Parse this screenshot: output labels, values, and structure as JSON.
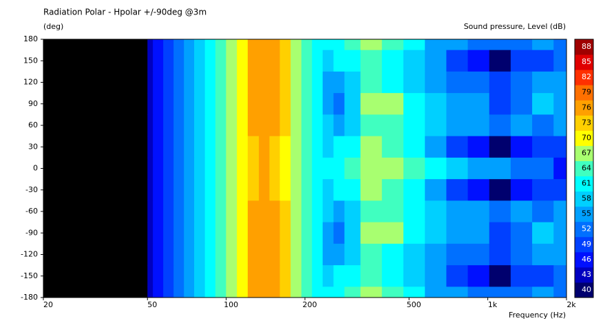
{
  "chart_data": {
    "type": "contour",
    "title": "Radiation Polar - Hpolar +/-90deg @3m",
    "y_label": "(deg)",
    "x_label": "Frequency  (Hz)",
    "colorbar_label": "Sound pressure, Level  (dB)",
    "log_x": true,
    "xlim": [
      20,
      2000
    ],
    "ylim": [
      -180,
      180
    ],
    "xticks": [
      20,
      50,
      100,
      200,
      500,
      {
        "value": 1000,
        "label": "1k"
      },
      {
        "value": 2000,
        "label": "2k"
      }
    ],
    "yticks": [
      180,
      150,
      120,
      90,
      60,
      30,
      0,
      -30,
      -60,
      -90,
      -120,
      -150,
      -180
    ],
    "x": [
      50,
      55,
      60,
      66,
      72,
      79,
      87,
      95,
      105,
      115,
      127,
      140,
      153,
      168,
      185,
      203,
      223,
      245,
      270,
      297,
      358,
      433,
      523,
      632,
      763,
      922,
      1113,
      1345,
      1624,
      1962
    ],
    "y": [
      180,
      150,
      120,
      90,
      60,
      30,
      0,
      -30,
      -60,
      -90,
      -120,
      -150,
      -180
    ],
    "z": [
      [
        44,
        47,
        50,
        53,
        56,
        59,
        62,
        65,
        68,
        71,
        76,
        77,
        76,
        72,
        68,
        65,
        62,
        61,
        62,
        63,
        67,
        64,
        60,
        56,
        54,
        53,
        52,
        51,
        55,
        52
      ],
      [
        44,
        47,
        50,
        53,
        56,
        59,
        62,
        65,
        68,
        71,
        76,
        77,
        76,
        72,
        68,
        65,
        62,
        59,
        60,
        61,
        64,
        62,
        59,
        54,
        48,
        46,
        40,
        48,
        50,
        51
      ],
      [
        44,
        47,
        50,
        53,
        56,
        59,
        62,
        65,
        68,
        71,
        75,
        77,
        75,
        72,
        68,
        65,
        62,
        56,
        55,
        58,
        64,
        62,
        59,
        55,
        52,
        51,
        49,
        52,
        54,
        55
      ],
      [
        44,
        47,
        50,
        53,
        56,
        59,
        62,
        65,
        68,
        71,
        75,
        77,
        75,
        72,
        68,
        65,
        62,
        55,
        53,
        57,
        67,
        66,
        62,
        57,
        55,
        54,
        50,
        53,
        57,
        55
      ],
      [
        44,
        47,
        50,
        53,
        56,
        59,
        62,
        65,
        68,
        71,
        75,
        77,
        75,
        72,
        68,
        65,
        62,
        57,
        56,
        59,
        64,
        63,
        60,
        57,
        55,
        54,
        51,
        55,
        53,
        54
      ],
      [
        44,
        47,
        50,
        53,
        56,
        59,
        62,
        65,
        68,
        71,
        74,
        77,
        74,
        71,
        68,
        65,
        62,
        59,
        60,
        62,
        66,
        64,
        60,
        55,
        50,
        46,
        40,
        47,
        49,
        50
      ],
      [
        44,
        47,
        50,
        53,
        56,
        59,
        62,
        65,
        68,
        71,
        74,
        77,
        74,
        71,
        68,
        65,
        62,
        60,
        61,
        63,
        67,
        66,
        64,
        60,
        57,
        56,
        54,
        53,
        52,
        46
      ],
      [
        44,
        47,
        50,
        53,
        56,
        59,
        62,
        65,
        68,
        71,
        74,
        77,
        74,
        71,
        68,
        65,
        62,
        59,
        60,
        62,
        66,
        64,
        60,
        55,
        50,
        46,
        40,
        47,
        49,
        50
      ],
      [
        44,
        47,
        50,
        53,
        56,
        59,
        62,
        65,
        68,
        71,
        75,
        77,
        75,
        72,
        68,
        65,
        62,
        57,
        56,
        59,
        64,
        63,
        60,
        57,
        55,
        54,
        51,
        55,
        53,
        54
      ],
      [
        44,
        47,
        50,
        53,
        56,
        59,
        62,
        65,
        68,
        71,
        75,
        77,
        75,
        72,
        68,
        65,
        62,
        55,
        53,
        57,
        67,
        66,
        62,
        57,
        55,
        54,
        50,
        53,
        57,
        55
      ],
      [
        44,
        47,
        50,
        53,
        56,
        59,
        62,
        65,
        68,
        71,
        75,
        77,
        75,
        72,
        68,
        65,
        62,
        56,
        55,
        58,
        64,
        62,
        59,
        55,
        52,
        51,
        49,
        52,
        54,
        55
      ],
      [
        44,
        47,
        50,
        53,
        56,
        59,
        62,
        65,
        68,
        71,
        76,
        77,
        76,
        72,
        68,
        65,
        62,
        59,
        60,
        61,
        64,
        62,
        59,
        54,
        48,
        46,
        40,
        48,
        50,
        51
      ],
      [
        44,
        47,
        50,
        53,
        56,
        59,
        62,
        65,
        68,
        71,
        76,
        77,
        76,
        72,
        68,
        65,
        62,
        61,
        62,
        63,
        67,
        64,
        60,
        56,
        54,
        53,
        52,
        51,
        55,
        52
      ]
    ],
    "colorbar": {
      "levels": [
        40,
        43,
        46,
        49,
        52,
        55,
        58,
        61,
        64,
        67,
        70,
        73,
        76,
        79,
        82,
        85,
        88
      ],
      "colors": [
        "#00006e",
        "#0000c0",
        "#0010ff",
        "#0040ff",
        "#0070ff",
        "#00a0ff",
        "#00d0ff",
        "#00ffff",
        "#40ffc0",
        "#a8ff70",
        "#ffff00",
        "#ffd000",
        "#ffa000",
        "#ff7000",
        "#ff3000",
        "#e00000",
        "#a00000"
      ]
    }
  }
}
